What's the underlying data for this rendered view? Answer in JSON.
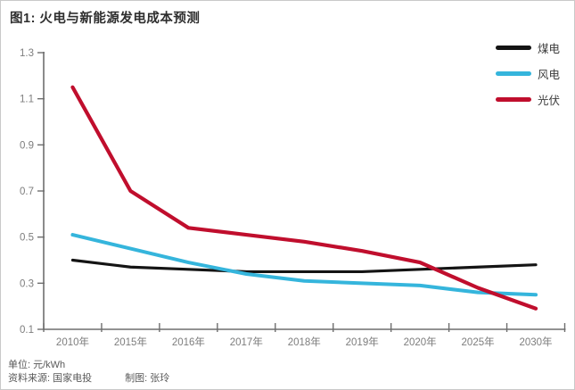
{
  "figure": {
    "title": "图1: 火电与新能源发电成本预测"
  },
  "chart_data": {
    "type": "line",
    "title": "图1: 火电与新能源发电成本预测",
    "categories": [
      "2010年",
      "2015年",
      "2016年",
      "2017年",
      "2018年",
      "2019年",
      "2020年",
      "2025年",
      "2030年"
    ],
    "series": [
      {
        "name": "煤电",
        "color": "#141414",
        "stroke_width": 3.2,
        "values": [
          0.4,
          0.37,
          0.36,
          0.35,
          0.35,
          0.35,
          0.36,
          0.37,
          0.38
        ]
      },
      {
        "name": "风电",
        "color": "#35b5dc",
        "stroke_width": 4,
        "values": [
          0.51,
          0.45,
          0.39,
          0.34,
          0.31,
          0.3,
          0.29,
          0.26,
          0.25
        ]
      },
      {
        "name": "光伏",
        "color": "#c00e2d",
        "stroke_width": 4.2,
        "values": [
          1.15,
          0.7,
          0.54,
          0.51,
          0.48,
          0.44,
          0.39,
          0.28,
          0.19
        ]
      }
    ],
    "xlabel": "",
    "ylabel": "",
    "ylim": [
      0.1,
      1.3
    ],
    "ytick_step": 0.2,
    "ytick_labels": [
      "0.1",
      "0.3",
      "0.5",
      "0.7",
      "0.9",
      "1.1",
      "1.3"
    ],
    "grid": false,
    "legend_position": "top-right",
    "unit_label": "单位: 元/kWh",
    "source_label": "资料来源: 国家电投",
    "credit_label": "制图: 张玲",
    "axis_color": "#6e6e6e",
    "tick_label_color": "#7d7d7d"
  }
}
